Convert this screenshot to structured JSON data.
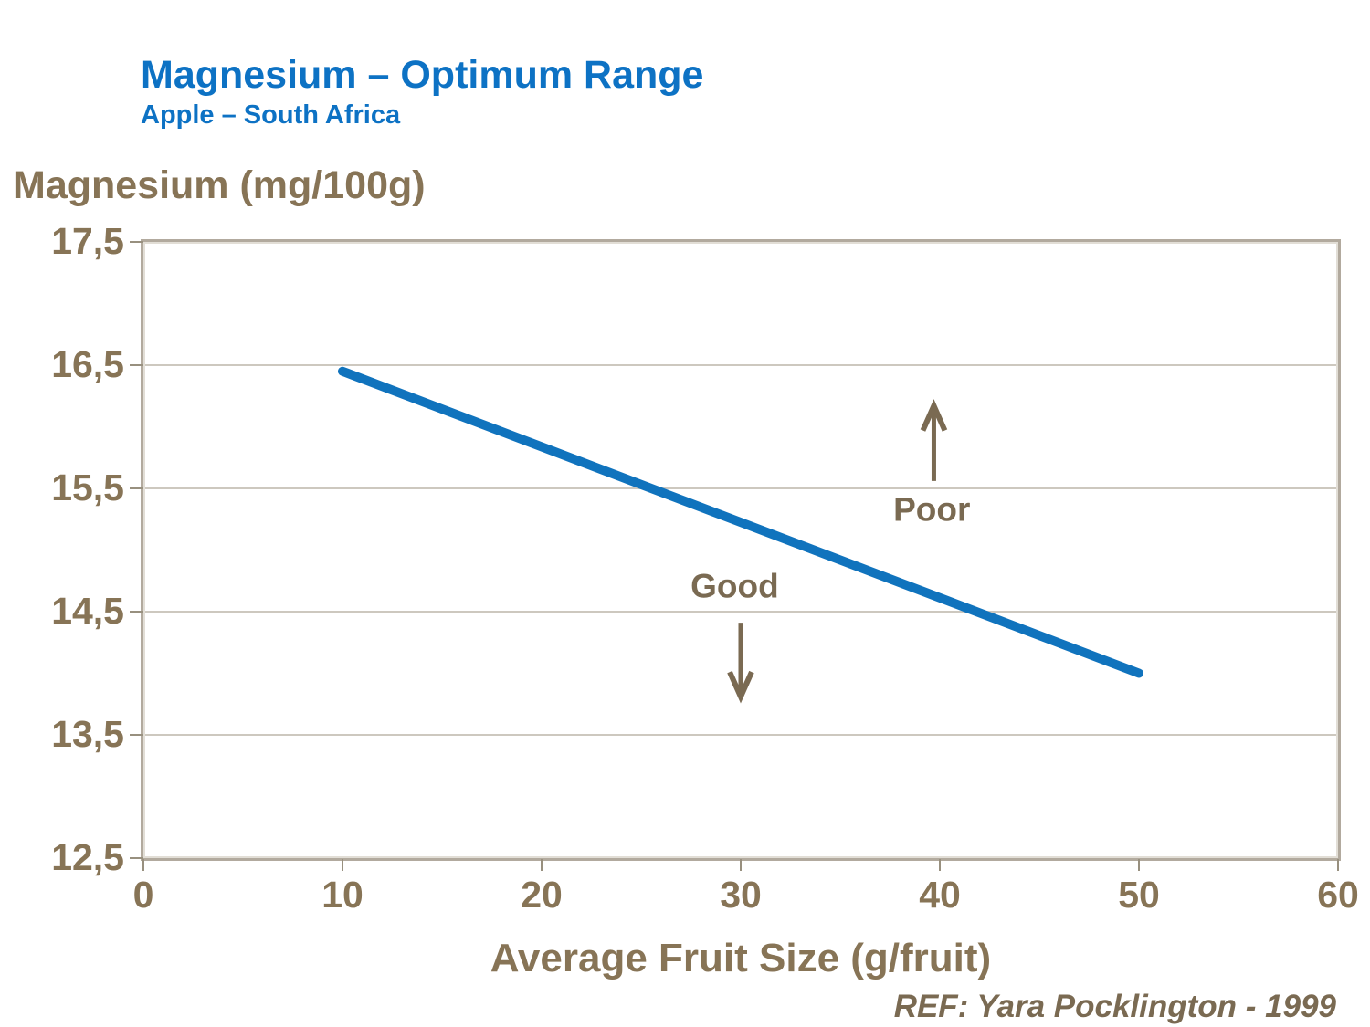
{
  "header": {
    "title": "Magnesium – Optimum Range",
    "subtitle": "Apple – South Africa"
  },
  "footer": {
    "reference": "REF: Yara Pocklington - 1999"
  },
  "colors": {
    "title_blue": "#0D72C4",
    "line_blue": "#1073BD",
    "label_brown": "#877456",
    "annotation_brown": "#7A6A52",
    "gridline_gray": "#CDC8BF",
    "border_gray": "#B2AA9E",
    "border_highlight": "#E2DED6",
    "tick_gray": "#98907F"
  },
  "chart_data": {
    "type": "line",
    "title": "Magnesium – Optimum Range, Apple – South Africa",
    "xlabel": "Average Fruit Size (g/fruit)",
    "ylabel": "Magnesium (mg/100g)",
    "xlim": [
      0,
      60
    ],
    "ylim": [
      12.5,
      17.5
    ],
    "x_ticks": [
      0,
      10,
      20,
      30,
      40,
      50,
      60
    ],
    "y_ticks": [
      {
        "value": 12.5,
        "label": "12,5"
      },
      {
        "value": 13.5,
        "label": "13,5"
      },
      {
        "value": 14.5,
        "label": "14,5"
      },
      {
        "value": 15.5,
        "label": "15,5"
      },
      {
        "value": 16.5,
        "label": "16,5"
      },
      {
        "value": 17.5,
        "label": "17,5"
      }
    ],
    "gridlines": "horizontal",
    "legend": false,
    "series": [
      {
        "name": "optimum-magnesium-line",
        "points": [
          [
            10,
            16.45
          ],
          [
            50,
            14.0
          ]
        ]
      }
    ],
    "annotations": [
      {
        "text": "Good",
        "x": 29.7,
        "y": 14.71,
        "arrow": {
          "direction": "down",
          "x": 30,
          "from": 14.41,
          "to": 13.81
        }
      },
      {
        "text": "Poor",
        "x": 39.6,
        "y": 15.33,
        "arrow": {
          "direction": "up",
          "x": 39.7,
          "from": 15.56,
          "to": 16.17
        }
      }
    ]
  }
}
